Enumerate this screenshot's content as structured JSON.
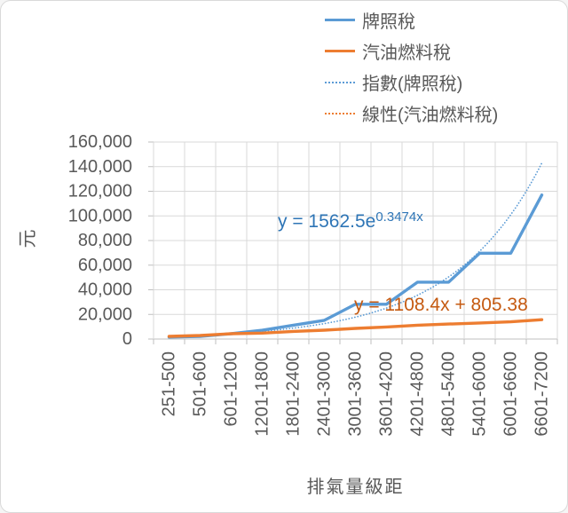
{
  "chart_data": {
    "type": "line",
    "xlabel": "排氣量級距",
    "ylabel": "元",
    "ylim": [
      0,
      160000
    ],
    "ytick_interval": 20000,
    "yticklabels": [
      "0",
      "20,000",
      "40,000",
      "60,000",
      "80,000",
      "100,000",
      "120,000",
      "140,000",
      "160,000"
    ],
    "grid": true,
    "legend_position": "top-right",
    "categories": [
      "251-500",
      "501-600",
      "601-1200",
      "1201-1800",
      "1801-2400",
      "2401-3000",
      "3001-3600",
      "3601-4200",
      "4201-4800",
      "4801-5400",
      "5401-6000",
      "6001-6600",
      "6601-7200"
    ],
    "series": [
      {
        "id": "license-tax",
        "name": "牌照稅",
        "color": "#5B9BD5",
        "line_style": "solid",
        "values": [
          1620,
          2160,
          4320,
          7120,
          11230,
          15210,
          28220,
          28220,
          46170,
          46170,
          69690,
          69690,
          117000
        ]
      },
      {
        "id": "fuel-tax",
        "name": "汽油燃料稅",
        "color": "#ED7D31",
        "line_style": "solid",
        "values": [
          2160,
          2880,
          4320,
          4800,
          6180,
          7200,
          8640,
          9810,
          11220,
          12180,
          13080,
          13950,
          15720
        ]
      },
      {
        "id": "exp-trendline",
        "name": "指數(牌照稅)",
        "color": "#5B9BD5",
        "line_style": "dotted",
        "trendline": {
          "type": "exponential",
          "a": 1562.5,
          "b": 0.3474
        }
      },
      {
        "id": "linear-trendline",
        "name": "線性(汽油燃料稅)",
        "color": "#ED7D31",
        "line_style": "dotted",
        "trendline": {
          "type": "linear",
          "slope": 1108.4,
          "intercept": 805.38
        }
      }
    ],
    "annotations": [
      {
        "id": "exp-equation",
        "prefix": "y = 1562.5e",
        "superscript": "0.3474x",
        "color": "#2E75B6"
      },
      {
        "id": "linear-equation",
        "text": "y = 1108.4x + 805.38",
        "color": "#C55A11"
      }
    ]
  },
  "colors": {
    "axis_text": "#595959",
    "gridline": "#D9D9D9",
    "axis_line": "#BFBFBF",
    "background": "#FFFFFF"
  }
}
